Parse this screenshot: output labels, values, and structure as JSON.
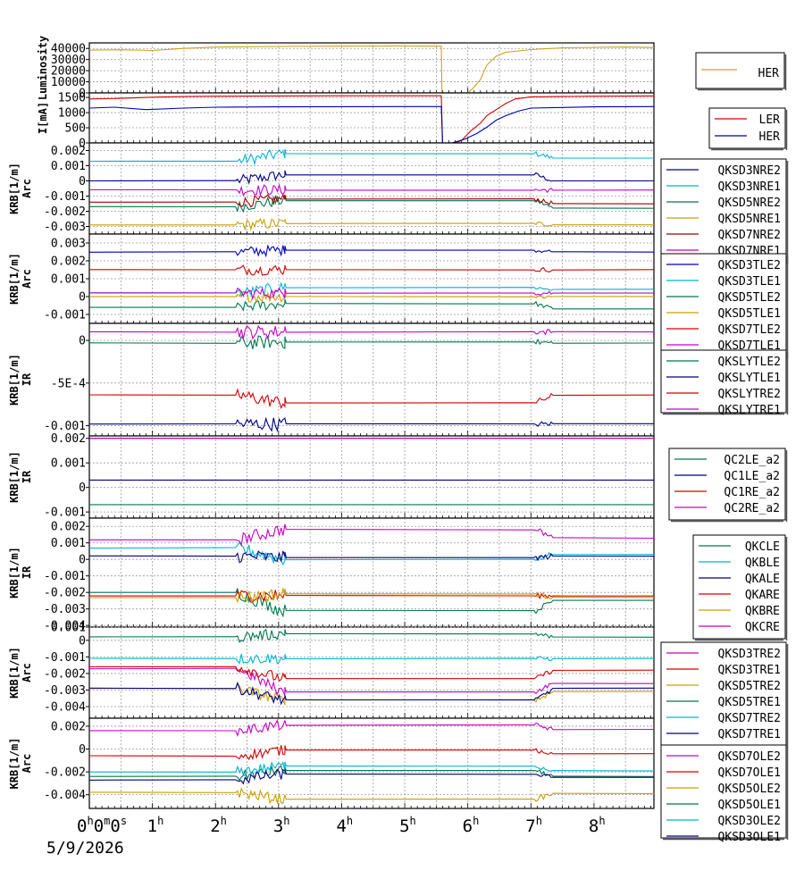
{
  "chart_data": {
    "type": "line",
    "date_label": "5/9/2026",
    "x_axis": {
      "unit": "hours",
      "range": [
        0,
        8.95
      ],
      "ticks": [
        {
          "hour": 0,
          "label": "0",
          "sup": "h",
          "extra": "0",
          "extra_sup": "m",
          "extra2": "0",
          "extra2_sup": "s"
        },
        {
          "hour": 1,
          "label": "1",
          "sup": "h"
        },
        {
          "hour": 2,
          "label": "2",
          "sup": "h"
        },
        {
          "hour": 3,
          "label": "3",
          "sup": "h"
        },
        {
          "hour": 4,
          "label": "4",
          "sup": "h"
        },
        {
          "hour": 5,
          "label": "5",
          "sup": "h"
        },
        {
          "hour": 6,
          "label": "6",
          "sup": "h"
        },
        {
          "hour": 7,
          "label": "7",
          "sup": "h"
        },
        {
          "hour": 8,
          "label": "8",
          "sup": "h"
        }
      ]
    },
    "panels": [
      {
        "ylabel": [
          "Luminosity"
        ],
        "ylabel_size": "small",
        "ylim": [
          0,
          45000
        ],
        "ticks": [
          {
            "v": 0,
            "label": "0"
          },
          {
            "v": 10000,
            "label": "10000"
          },
          {
            "v": 20000,
            "label": "20000"
          },
          {
            "v": 30000,
            "label": "30000"
          },
          {
            "v": 40000,
            "label": "40000"
          }
        ],
        "legend_font": "large",
        "series": [
          {
            "name": "HER",
            "color": "#d4a017",
            "points": [
              [
                0,
                38500
              ],
              [
                0.5,
                38800
              ],
              [
                1,
                38200
              ],
              [
                1.5,
                40000
              ],
              [
                2,
                41200
              ],
              [
                3,
                41800
              ],
              [
                4,
                42100
              ],
              [
                5,
                42300
              ],
              [
                5.58,
                42000
              ],
              [
                5.59,
                0
              ],
              [
                6.0,
                0
              ],
              [
                6.08,
                4000
              ],
              [
                6.2,
                12000
              ],
              [
                6.3,
                25000
              ],
              [
                6.45,
                33000
              ],
              [
                6.6,
                36500
              ],
              [
                7,
                39000
              ],
              [
                7.5,
                40500
              ],
              [
                8,
                41000
              ],
              [
                8.5,
                41300
              ],
              [
                8.95,
                40800
              ]
            ]
          }
        ]
      },
      {
        "ylabel": [
          "I[mA]"
        ],
        "ylabel_size": "small",
        "ylim": [
          0,
          1650
        ],
        "ticks": [
          {
            "v": 0,
            "label": "0"
          },
          {
            "v": 500,
            "label": "500"
          },
          {
            "v": 1000,
            "label": "1000"
          },
          {
            "v": 1500,
            "label": "1500"
          }
        ],
        "legend_font": "normal",
        "series": [
          {
            "name": "LER",
            "color": "#d40000",
            "points": [
              [
                0,
                1450
              ],
              [
                0.5,
                1470
              ],
              [
                1.0,
                1510
              ],
              [
                1.5,
                1530
              ],
              [
                2,
                1540
              ],
              [
                3,
                1550
              ],
              [
                4,
                1555
              ],
              [
                5,
                1555
              ],
              [
                5.58,
                1555
              ],
              [
                5.6,
                0
              ],
              [
                5.8,
                0
              ],
              [
                5.9,
                80
              ],
              [
                6.05,
                400
              ],
              [
                6.2,
                650
              ],
              [
                6.3,
                900
              ],
              [
                6.45,
                1100
              ],
              [
                6.6,
                1300
              ],
              [
                6.75,
                1450
              ],
              [
                7,
                1520
              ],
              [
                8,
                1540
              ],
              [
                8.95,
                1550
              ]
            ]
          },
          {
            "name": "HER",
            "color": "#0000b4",
            "points": [
              [
                0,
                1150
              ],
              [
                0.4,
                1180
              ],
              [
                0.9,
                1100
              ],
              [
                1.5,
                1150
              ],
              [
                2,
                1180
              ],
              [
                3,
                1190
              ],
              [
                4,
                1195
              ],
              [
                5,
                1200
              ],
              [
                5.58,
                1200
              ],
              [
                5.6,
                0
              ],
              [
                5.75,
                0
              ],
              [
                5.95,
                120
              ],
              [
                6.15,
                320
              ],
              [
                6.3,
                520
              ],
              [
                6.45,
                750
              ],
              [
                6.6,
                900
              ],
              [
                6.8,
                1050
              ],
              [
                7,
                1150
              ],
              [
                8,
                1190
              ],
              [
                8.95,
                1200
              ]
            ]
          }
        ]
      },
      {
        "ylabel": [
          "KRB[1/m]",
          "Arc"
        ],
        "ylabel_size": "normal",
        "ylim": [
          -0.0035,
          0.0025
        ],
        "ticks": [
          {
            "v": -0.003,
            "label": "-0.003"
          },
          {
            "v": -0.002,
            "label": "-0.002"
          },
          {
            "v": -0.001,
            "label": "-0.001"
          },
          {
            "v": 0,
            "label": "0"
          },
          {
            "v": 0.001,
            "label": "0.001"
          },
          {
            "v": 0.002,
            "label": "0.002"
          }
        ],
        "legend_font": "normal",
        "series": [
          {
            "name": "QKSD3NRE2",
            "color": "#000080",
            "base": [
              0.0,
              0.0004,
              0.0
            ]
          },
          {
            "name": "QKSD3NRE1",
            "color": "#00b4d4",
            "base": [
              0.0013,
              0.0018,
              0.0015
            ]
          },
          {
            "name": "QKSD5NRE2",
            "color": "#007850",
            "base": [
              -0.0017,
              -0.0013,
              -0.0018
            ]
          },
          {
            "name": "QKSD5NRE1",
            "color": "#c8a000",
            "base": [
              -0.0029,
              -0.0028,
              -0.0029
            ]
          },
          {
            "name": "QKSD7NRE2",
            "color": "#a00000",
            "base": [
              -0.0014,
              -0.0012,
              -0.0015
            ]
          },
          {
            "name": "QKSD7NRE1",
            "color": "#c800c8",
            "base": [
              -0.0006,
              -0.0006,
              -0.0006
            ]
          }
        ]
      },
      {
        "ylabel": [
          "KRB[1/m]",
          "Arc"
        ],
        "ylabel_size": "normal",
        "ylim": [
          -0.0015,
          0.0035
        ],
        "ticks": [
          {
            "v": -0.001,
            "label": "-0.001"
          },
          {
            "v": 0,
            "label": "0"
          },
          {
            "v": 0.001,
            "label": "0.001"
          },
          {
            "v": 0.002,
            "label": "0.002"
          },
          {
            "v": 0.003,
            "label": "0.003"
          }
        ],
        "legend_font": "normal",
        "series": [
          {
            "name": "QKSD3TLE2",
            "color": "#0000b4",
            "base": [
              0.0025,
              0.0026,
              0.0025
            ]
          },
          {
            "name": "QKSD3TLE1",
            "color": "#00b4d4",
            "base": [
              0.0002,
              0.0005,
              0.0004
            ]
          },
          {
            "name": "QKSD5TLE2",
            "color": "#007850",
            "base": [
              -0.0006,
              -0.0004,
              -0.0007
            ]
          },
          {
            "name": "QKSD5TLE1",
            "color": "#c8a000",
            "base": [
              0.0,
              0.0,
              0.0
            ]
          },
          {
            "name": "QKSD7TLE2",
            "color": "#d40000",
            "base": [
              0.0015,
              0.0015,
              0.0015
            ]
          },
          {
            "name": "QKSD7TLE1",
            "color": "#c800c8",
            "base": [
              0.0002,
              0.0002,
              0.0002
            ]
          }
        ]
      },
      {
        "ylabel": [
          "KRB[1/m]",
          "IR"
        ],
        "ylabel_size": "normal",
        "ylim": [
          -0.00112,
          0.0002
        ],
        "ticks": [
          {
            "v": -0.001,
            "label": "-0.001"
          },
          {
            "v": -0.0005,
            "label": "-5E-4"
          },
          {
            "v": 0,
            "label": "0"
          }
        ],
        "legend_font": "normal",
        "series": [
          {
            "name": "QKSLYTLE2",
            "color": "#007850",
            "base": [
              -3e-05,
              -2e-05,
              -3e-05
            ]
          },
          {
            "name": "QKSLYTLE1",
            "color": "#000080",
            "base": [
              -0.00098,
              -0.00098,
              -0.00098
            ]
          },
          {
            "name": "QKSLYTRE2",
            "color": "#d40000",
            "base": [
              -0.00064,
              -0.00073,
              -0.00064
            ]
          },
          {
            "name": "QKSLYTRE1",
            "color": "#c800c8",
            "base": [
              0.0001,
              0.0001,
              0.0001
            ]
          }
        ]
      },
      {
        "ylabel": [
          "KRB[1/m]",
          "IR"
        ],
        "ylabel_size": "normal",
        "ylim": [
          -0.00125,
          0.0021
        ],
        "ticks": [
          {
            "v": -0.001,
            "label": "-0.001"
          },
          {
            "v": 0,
            "label": "0"
          },
          {
            "v": 0.001,
            "label": "0.001"
          },
          {
            "v": 0.002,
            "label": "0.002"
          }
        ],
        "legend_font": "normal",
        "series": [
          {
            "name": "QC2LE_a2",
            "color": "#007850",
            "flat": -0.0007
          },
          {
            "name": "QC1LE_a2",
            "color": "#000080",
            "flat": 0.0003
          },
          {
            "name": "QC1RE_a2",
            "color": "#d40000",
            "flat": 0.002
          },
          {
            "name": "QC2RE_a2",
            "color": "#c800c8",
            "flat": 0.00201
          }
        ]
      },
      {
        "ylabel": [
          "KRB[1/m]",
          "IR"
        ],
        "ylabel_size": "large",
        "ylim": [
          -0.0041,
          0.0025
        ],
        "ticks": [
          {
            "v": -0.004,
            "label": "-0.004"
          },
          {
            "v": -0.003,
            "label": "-0.003"
          },
          {
            "v": -0.002,
            "label": "-0.002"
          },
          {
            "v": -0.001,
            "label": "-0.001"
          },
          {
            "v": 0,
            "label": "0"
          },
          {
            "v": 0.001,
            "label": "0.001"
          },
          {
            "v": 0.002,
            "label": "0.002"
          }
        ],
        "legend_font": "normal",
        "series": [
          {
            "name": "QKCLE",
            "color": "#007850",
            "base": [
              -0.002,
              -0.0031,
              -0.0025
            ]
          },
          {
            "name": "QKBLE",
            "color": "#00b4d4",
            "base": [
              0.0007,
              0.0,
              0.0003
            ]
          },
          {
            "name": "QKALE",
            "color": "#000080",
            "base": [
              0.0002,
              0.0001,
              0.0002
            ]
          },
          {
            "name": "QKARE",
            "color": "#d40000",
            "base": [
              -0.0022,
              -0.0022,
              -0.0022
            ]
          },
          {
            "name": "QKBRE",
            "color": "#c8a000",
            "base": [
              -0.0023,
              -0.0021,
              -0.0023
            ]
          },
          {
            "name": "QKCRE",
            "color": "#c800c8",
            "base": [
              0.0012,
              0.0018,
              0.0013
            ]
          }
        ]
      },
      {
        "ylabel": [
          "KRB[1/m]",
          "Arc"
        ],
        "ylabel_size": "normal",
        "ylim": [
          -0.0047,
          0.0008
        ],
        "ticks": [
          {
            "v": -0.004,
            "label": "-0.004"
          },
          {
            "v": -0.003,
            "label": "-0.003"
          },
          {
            "v": -0.002,
            "label": "-0.002"
          },
          {
            "v": -0.001,
            "label": "-0.001"
          },
          {
            "v": 0,
            "label": "0"
          },
          {
            "v": 0.0008,
            "label": "0.001"
          }
        ],
        "legend_font": "normal",
        "series": [
          {
            "name": "QKSD3TRE2",
            "color": "#c800c8",
            "base": [
              -0.0017,
              -0.0031,
              -0.0026
            ]
          },
          {
            "name": "QKSD3TRE1",
            "color": "#d40000",
            "base": [
              -0.0016,
              -0.0023,
              -0.0018
            ]
          },
          {
            "name": "QKSD5TRE2",
            "color": "#c8a000",
            "base": [
              -0.0029,
              -0.0036,
              -0.0031
            ]
          },
          {
            "name": "QKSD5TRE1",
            "color": "#007850",
            "base": [
              0.0002,
              0.0004,
              0.0002
            ]
          },
          {
            "name": "QKSD7TRE2",
            "color": "#00b4d4",
            "base": [
              -0.0011,
              -0.0011,
              -0.0011
            ]
          },
          {
            "name": "QKSD7TRE1",
            "color": "#000080",
            "base": [
              -0.0029,
              -0.0036,
              -0.0029
            ]
          }
        ]
      },
      {
        "ylabel": [
          "KRB[1/m]",
          "Arc"
        ],
        "ylabel_size": "normal",
        "ylim": [
          -0.0052,
          0.0027
        ],
        "ticks": [
          {
            "v": -0.004,
            "label": "-0.004"
          },
          {
            "v": -0.002,
            "label": "-0.002"
          },
          {
            "v": 0,
            "label": "0"
          },
          {
            "v": 0.002,
            "label": "0.002"
          }
        ],
        "legend_font": "normal",
        "series": [
          {
            "name": "QKSD7OLE2",
            "color": "#c800c8",
            "base": [
              0.0016,
              0.0021,
              0.0017
            ]
          },
          {
            "name": "QKSD7OLE1",
            "color": "#d40000",
            "base": [
              -0.0006,
              -0.0001,
              -0.0004
            ]
          },
          {
            "name": "QKSD5OLE2",
            "color": "#c8a000",
            "base": [
              -0.0038,
              -0.0044,
              -0.0039
            ]
          },
          {
            "name": "QKSD5OLE1",
            "color": "#007850",
            "base": [
              -0.0024,
              -0.0019,
              -0.0024
            ]
          },
          {
            "name": "QKSD3OLE2",
            "color": "#00b4d4",
            "base": [
              -0.002,
              -0.0015,
              -0.0019
            ]
          },
          {
            "name": "QKSD3OLE1",
            "color": "#000080",
            "base": [
              -0.0027,
              -0.0022,
              -0.0025
            ]
          }
        ]
      }
    ]
  }
}
